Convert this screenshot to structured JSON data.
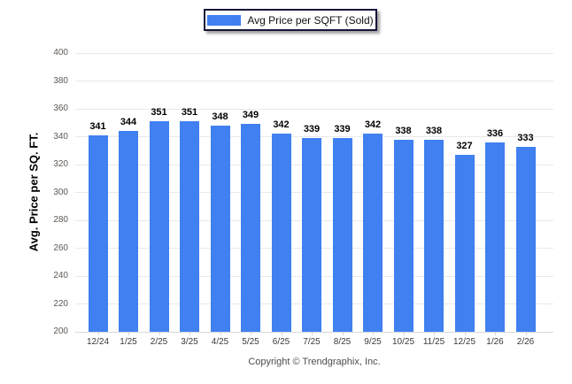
{
  "legend": {
    "label": "Avg Price per SQFT (Sold)"
  },
  "footer": {
    "copyright": "Copyright © Trendgraphix, Inc."
  },
  "chart_data": {
    "type": "bar",
    "title": "",
    "series_name": "Avg Price per SQFT (Sold)",
    "categories": [
      "12/24",
      "1/25",
      "2/25",
      "3/25",
      "4/25",
      "5/25",
      "6/25",
      "7/25",
      "8/25",
      "9/25",
      "10/25",
      "11/25",
      "12/25",
      "1/26",
      "2/26"
    ],
    "values": [
      341,
      344,
      351,
      351,
      348,
      349,
      342,
      339,
      339,
      342,
      338,
      338,
      327,
      336,
      333
    ],
    "xlabel": "",
    "ylabel": "Avg. Price per SQ. FT.",
    "ylim": [
      200,
      400
    ],
    "ytick_step": 20,
    "grid": true,
    "legend_position": "top-center",
    "value_labels": true,
    "colors": {
      "bar": "#4080F0",
      "gridline": "#e9e9e9",
      "baseline": "#d8d8d8"
    }
  }
}
